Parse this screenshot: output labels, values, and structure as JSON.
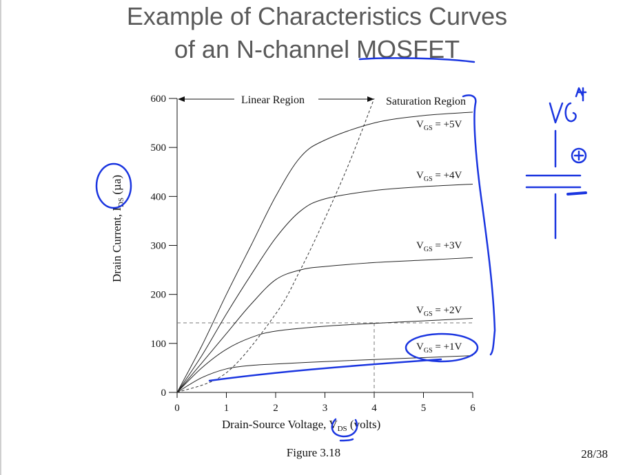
{
  "slide": {
    "title_line1": "Example of Characteristics Curves",
    "title_line2": "of an N-channel MOSFET",
    "figure_caption": "Figure 3.18",
    "page_number": "28/38"
  },
  "annotations": {
    "linear_region": "Linear Region",
    "saturation_region": "Saturation Region",
    "handwritten_vgs": "VG",
    "handwritten_plus": "+"
  },
  "colors": {
    "ink": "#111111",
    "pen": "#1a35e0",
    "title": "#595959"
  },
  "chart_data": {
    "type": "line",
    "xlabel": "Drain-Source Voltage, V_DS (volts)",
    "ylabel": "Drain Current, I_DS (µa)",
    "xlim": [
      0,
      6
    ],
    "ylim": [
      0,
      600
    ],
    "xticks": [
      "0",
      "1",
      "2",
      "3",
      "4",
      "5",
      "6"
    ],
    "yticks": [
      "0",
      "100",
      "200",
      "300",
      "400",
      "500",
      "600"
    ],
    "grid": false,
    "series": [
      {
        "name": "VGS = +1V",
        "x": [
          0,
          0.5,
          1.0,
          1.5,
          2.0,
          3.0,
          4.0,
          5.0,
          6.0
        ],
        "y": [
          0,
          30,
          48,
          55,
          58,
          63,
          67,
          71,
          75
        ]
      },
      {
        "name": "VGS = +2V",
        "x": [
          0,
          0.5,
          1.0,
          1.5,
          2.0,
          3.0,
          4.0,
          5.0,
          6.0
        ],
        "y": [
          0,
          50,
          88,
          112,
          125,
          135,
          141,
          146,
          151
        ]
      },
      {
        "name": "VGS = +3V",
        "x": [
          0,
          0.5,
          1.0,
          1.5,
          2.0,
          2.5,
          3.0,
          4.0,
          5.0,
          6.0
        ],
        "y": [
          0,
          60,
          120,
          180,
          230,
          250,
          257,
          265,
          270,
          275
        ]
      },
      {
        "name": "VGS = +4V",
        "x": [
          0,
          0.5,
          1.0,
          1.5,
          2.0,
          2.5,
          3.0,
          4.0,
          5.0,
          6.0
        ],
        "y": [
          0,
          75,
          160,
          240,
          315,
          370,
          395,
          412,
          420,
          425
        ]
      },
      {
        "name": "VGS = +5V",
        "x": [
          0,
          0.5,
          1.0,
          1.5,
          2.0,
          2.5,
          3.0,
          4.0,
          5.0,
          6.0
        ],
        "y": [
          0,
          95,
          200,
          300,
          400,
          480,
          515,
          550,
          565,
          572
        ]
      }
    ],
    "boundary_curve": {
      "x": [
        0,
        1.0,
        2.0,
        2.5,
        3.0,
        3.5,
        4.0
      ],
      "y": [
        0,
        40,
        160,
        250,
        355,
        470,
        600
      ]
    },
    "reference_lines": {
      "horizontal_y": 142,
      "vertical_x": 4
    }
  }
}
